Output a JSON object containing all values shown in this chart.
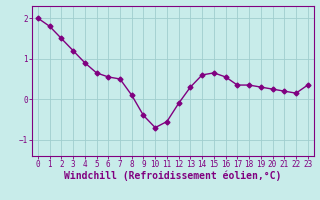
{
  "x": [
    0,
    1,
    2,
    3,
    4,
    5,
    6,
    7,
    8,
    9,
    10,
    11,
    12,
    13,
    14,
    15,
    16,
    17,
    18,
    19,
    20,
    21,
    22,
    23
  ],
  "y": [
    2.0,
    1.8,
    1.5,
    1.2,
    0.9,
    0.65,
    0.55,
    0.5,
    0.1,
    -0.4,
    -0.7,
    -0.55,
    -0.1,
    0.3,
    0.6,
    0.65,
    0.55,
    0.35,
    0.35,
    0.3,
    0.25,
    0.2,
    0.15,
    0.35
  ],
  "line_color": "#800080",
  "marker": "D",
  "markersize": 2.5,
  "linewidth": 1.0,
  "background_color": "#c8ecea",
  "grid_color": "#a0cece",
  "xlabel": "Windchill (Refroidissement éolien,°C)",
  "xlabel_fontsize": 7,
  "ylabel_ticks": [
    -1,
    0,
    1,
    2
  ],
  "xtick_labels": [
    "0",
    "1",
    "2",
    "3",
    "4",
    "5",
    "6",
    "7",
    "8",
    "9",
    "10",
    "11",
    "12",
    "13",
    "14",
    "15",
    "16",
    "17",
    "18",
    "19",
    "20",
    "21",
    "22",
    "23"
  ],
  "ylim": [
    -1.4,
    2.3
  ],
  "xlim": [
    -0.5,
    23.5
  ],
  "tick_color": "#800080",
  "tick_fontsize": 5.5,
  "spine_color": "#800080"
}
